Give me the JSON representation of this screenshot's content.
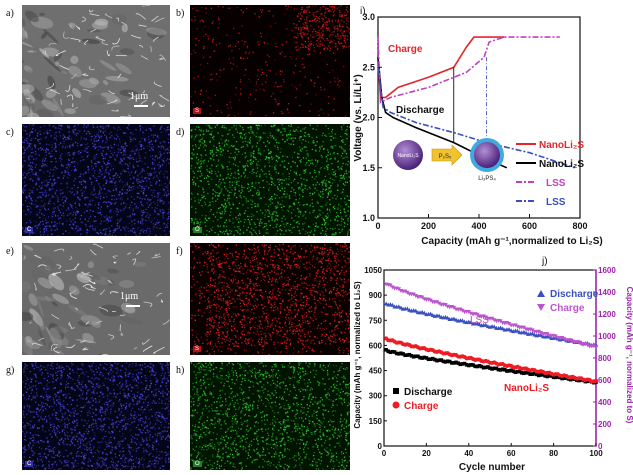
{
  "figure": {
    "panel_labels": [
      "a)",
      "b)",
      "c)",
      "d)",
      "e)",
      "f)",
      "g)",
      "h)",
      "i)",
      "j)"
    ],
    "scale_bar_a": "1μm",
    "scale_bar_e": "1μm",
    "element_tags": {
      "b": "S",
      "c": "C",
      "d": "O",
      "f": "S",
      "g": "C",
      "h": "O"
    },
    "colors": {
      "sulfur": "#e11a1a",
      "carbon": "#3a3ac8",
      "oxygen": "#2fbf2f",
      "sem": "#7a7a7a"
    }
  },
  "chart_data": [
    {
      "type": "line",
      "panel": "i)",
      "xlabel": "Capacity (mAh g⁻¹,normalized to Li₂S)",
      "ylabel": "Voltage (vs. Li/Li⁺)",
      "xlim": [
        0,
        800
      ],
      "ylim": [
        1.0,
        3.0
      ],
      "xticks": [
        "0",
        "200",
        "400",
        "600",
        "800"
      ],
      "yticks": [
        "1.0",
        "1.5",
        "2.0",
        "2.5",
        "3.0"
      ],
      "annotations": [
        "Charge",
        "Discharge"
      ],
      "legend": [
        "NanoLi₂S",
        "NanoLi₂S",
        "LSS",
        "LSS"
      ],
      "inset": {
        "left_label": "NanoLi₂S",
        "arrow_label": "P₂S₅",
        "right_label": "Li₃PS₄"
      },
      "series": [
        {
          "name": "NanoLi₂S",
          "role": "charge",
          "color": "#e4262a",
          "style": "solid",
          "points": [
            [
              0,
              2.6
            ],
            [
              10,
              2.2
            ],
            [
              30,
              2.2
            ],
            [
              80,
              2.3
            ],
            [
              200,
              2.4
            ],
            [
              300,
              2.5
            ],
            [
              350,
              2.7
            ],
            [
              380,
              2.8
            ],
            [
              500,
              2.8
            ]
          ]
        },
        {
          "name": "NanoLi₂S",
          "role": "discharge",
          "color": "#000000",
          "style": "solid",
          "points": [
            [
              0,
              2.6
            ],
            [
              15,
              2.2
            ],
            [
              30,
              2.05
            ],
            [
              60,
              2.0
            ],
            [
              150,
              1.9
            ],
            [
              300,
              1.75
            ],
            [
              420,
              1.6
            ],
            [
              510,
              1.5
            ]
          ]
        },
        {
          "name": "LSS",
          "role": "charge",
          "color": "#c040c0",
          "style": "dashdot",
          "points": [
            [
              0,
              2.8
            ],
            [
              10,
              2.15
            ],
            [
              50,
              2.2
            ],
            [
              200,
              2.3
            ],
            [
              350,
              2.45
            ],
            [
              420,
              2.6
            ],
            [
              440,
              2.75
            ],
            [
              500,
              2.8
            ],
            [
              720,
              2.8
            ]
          ]
        },
        {
          "name": "LSS",
          "role": "discharge",
          "color": "#3a4fc0",
          "style": "dashdot",
          "points": [
            [
              0,
              2.5
            ],
            [
              20,
              2.1
            ],
            [
              50,
              2.05
            ],
            [
              150,
              1.95
            ],
            [
              300,
              1.85
            ],
            [
              430,
              1.75
            ],
            [
              600,
              1.65
            ],
            [
              780,
              1.5
            ]
          ]
        }
      ]
    },
    {
      "type": "scatter",
      "panel": "j)",
      "xlabel": "Cycle number",
      "ylabel_left": "Capacity (mAh g⁻¹, normalized to Li₂S)",
      "ylabel_right": "Capacity (mAh g⁻¹, normalized to S)",
      "xlim": [
        0,
        100
      ],
      "ylim_left": [
        0,
        1050
      ],
      "ylim_right": [
        0,
        1600
      ],
      "xticks": [
        "0",
        "20",
        "40",
        "60",
        "80",
        "100"
      ],
      "yticks_left": [
        "0",
        "150",
        "300",
        "450",
        "600",
        "750",
        "900",
        "1050"
      ],
      "yticks_right": [
        "0",
        "200",
        "400",
        "600",
        "800",
        "1000",
        "1200",
        "1400",
        "1600"
      ],
      "annotations": [
        "LSS",
        "NanoLi₂S"
      ],
      "legend_left": [
        "Discharge",
        "Charge"
      ],
      "legend_right": [
        "Discharge",
        "Charge"
      ],
      "series": [
        {
          "name": "Discharge",
          "group": "NanoLi₂S",
          "marker": "square",
          "color": "#000000",
          "start": 570,
          "end": 380
        },
        {
          "name": "Charge",
          "group": "NanoLi₂S",
          "marker": "circle",
          "color": "#ee1c24",
          "start": 640,
          "end": 385
        },
        {
          "name": "Discharge",
          "group": "LSS",
          "marker": "triangle-up",
          "color": "#3a4fc0",
          "start": 850,
          "end": 600
        },
        {
          "name": "Charge",
          "group": "LSS",
          "marker": "triangle-down",
          "color": "#bb55cc",
          "start": 970,
          "end": 590
        }
      ]
    }
  ]
}
